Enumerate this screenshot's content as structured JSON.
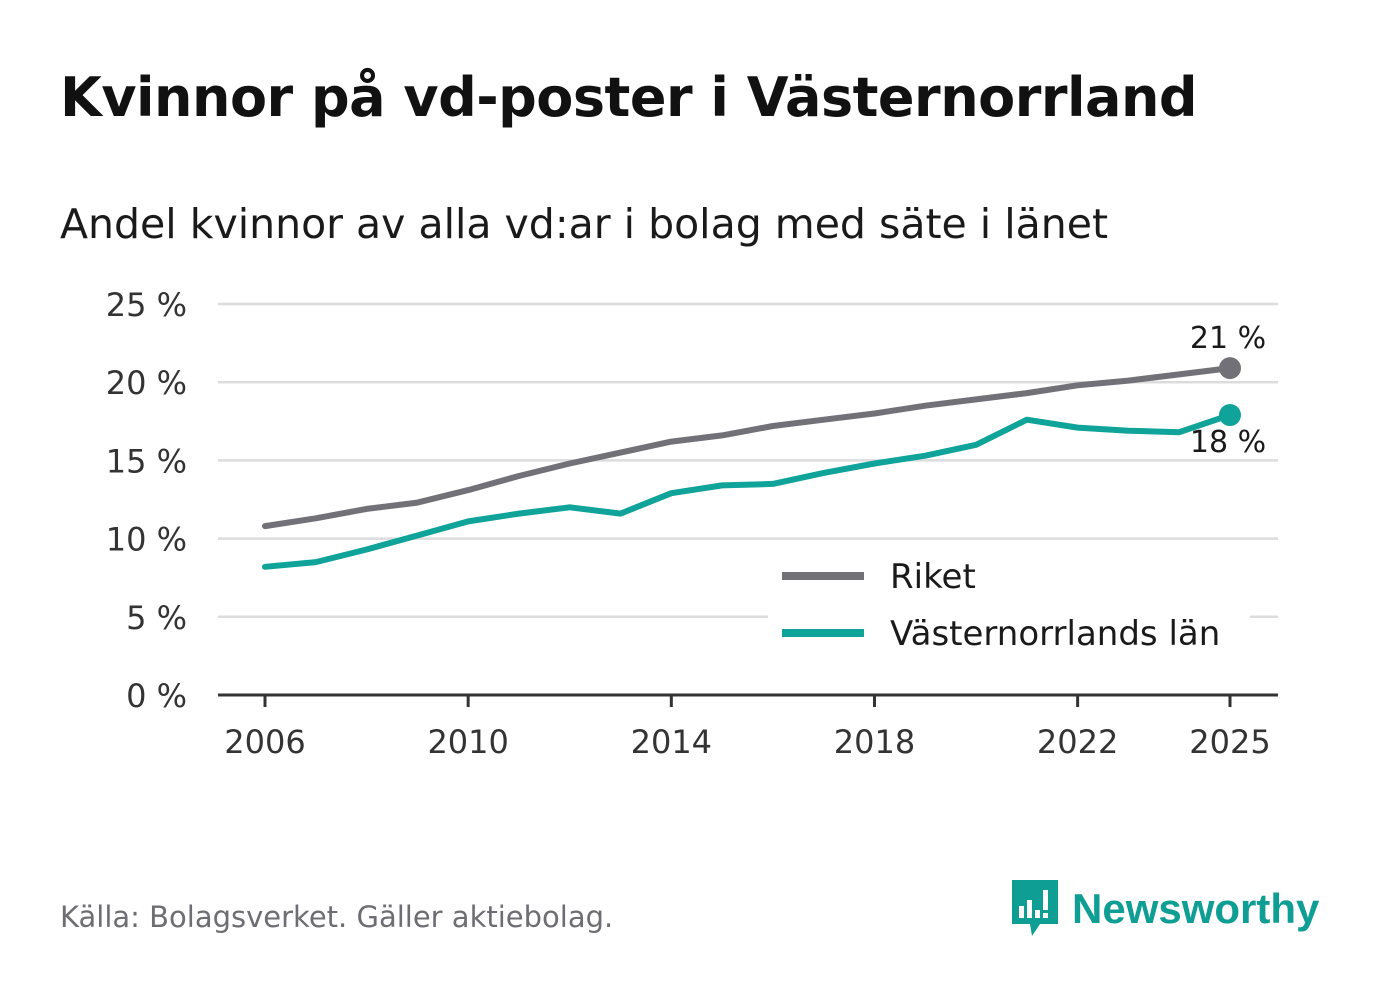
{
  "title": "Kvinnor på vd-poster i Västernorrland",
  "subtitle": "Andel kvinnor av alla vd:ar i bolag med säte i länet",
  "source": "Källa: Bolagsverket. Gäller aktiebolag.",
  "brand": "Newsworthy",
  "colors": {
    "riket": "#727178",
    "lan": "#0fa39a",
    "grid": "#dcdcdc",
    "axis": "#333333",
    "text": "#333333"
  },
  "chart_data": {
    "type": "line",
    "title": "Kvinnor på vd-poster i Västernorrland",
    "xlabel": "",
    "ylabel": "",
    "ylim": [
      0,
      25
    ],
    "xlim": [
      2006,
      2025
    ],
    "x_ticks": [
      2006,
      2010,
      2014,
      2018,
      2022,
      2025
    ],
    "x_tick_labels": [
      "2006",
      "2010",
      "2014",
      "2018",
      "2022",
      "2025"
    ],
    "y_ticks": [
      0,
      5,
      10,
      15,
      20,
      25
    ],
    "y_tick_labels": [
      "0 %",
      "5 %",
      "10 %",
      "15 %",
      "20 %",
      "25 %"
    ],
    "x": [
      2006,
      2007,
      2008,
      2009,
      2010,
      2011,
      2012,
      2013,
      2014,
      2015,
      2016,
      2017,
      2018,
      2019,
      2020,
      2021,
      2022,
      2023,
      2024,
      2025
    ],
    "series": [
      {
        "name": "Riket",
        "color": "#727178",
        "values": [
          10.8,
          11.3,
          11.9,
          12.3,
          13.1,
          14.0,
          14.8,
          15.5,
          16.2,
          16.6,
          17.2,
          17.6,
          18.0,
          18.5,
          18.9,
          19.3,
          19.8,
          20.1,
          20.5,
          20.9
        ],
        "end_label": "21 %",
        "end_label_position": "above"
      },
      {
        "name": "Västernorrlands län",
        "color": "#0fa39a",
        "values": [
          8.2,
          8.5,
          9.3,
          10.2,
          11.1,
          11.6,
          12.0,
          11.6,
          12.9,
          13.4,
          13.5,
          14.2,
          14.8,
          15.3,
          16.0,
          17.6,
          17.1,
          16.9,
          16.8,
          17.9
        ],
        "end_label": "18 %",
        "end_label_position": "below"
      }
    ],
    "legend_position": "bottom-right",
    "grid": true
  }
}
